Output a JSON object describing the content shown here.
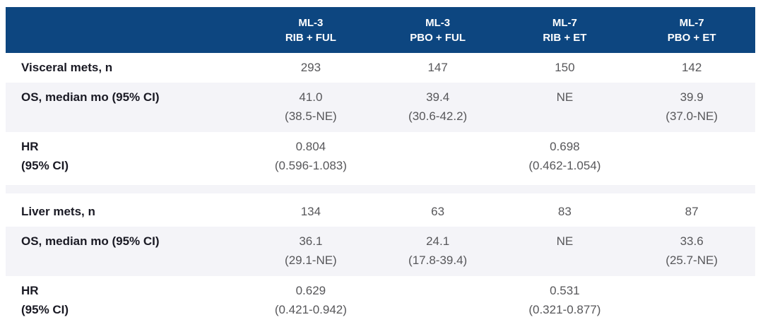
{
  "colors": {
    "header_bg": "#0d4680",
    "row_shade": "#f4f4f8",
    "label_text": "#1a1a24",
    "value_text": "#57575a",
    "header_text": "#ffffff"
  },
  "header": {
    "columns": [
      {
        "trial": "ML-3",
        "arm": "RIB + FUL"
      },
      {
        "trial": "ML-3",
        "arm": "PBO + FUL"
      },
      {
        "trial": "ML-7",
        "arm": "RIB + ET"
      },
      {
        "trial": "ML-7",
        "arm": "PBO + ET"
      }
    ]
  },
  "visceral": {
    "n_label": "Visceral mets, n",
    "n": [
      "293",
      "147",
      "150",
      "142"
    ],
    "os_label": "OS, median mo (95% CI)",
    "os": [
      {
        "v": "41.0",
        "ci": "(38.5-NE)"
      },
      {
        "v": "39.4",
        "ci": "(30.6-42.2)"
      },
      {
        "v": "NE",
        "ci": ""
      },
      {
        "v": "39.9",
        "ci": "(37.0-NE)"
      }
    ],
    "hr_label1": "HR",
    "hr_label2": "(95% CI)",
    "hr": {
      "rib_ful": {
        "v": "0.804",
        "ci": "(0.596-1.083)"
      },
      "rib_et": {
        "v": "0.698",
        "ci": "(0.462-1.054)"
      }
    }
  },
  "liver": {
    "n_label": "Liver mets, n",
    "n": [
      "134",
      "63",
      "83",
      "87"
    ],
    "os_label": "OS, median mo (95% CI)",
    "os": [
      {
        "v": "36.1",
        "ci": "(29.1-NE)"
      },
      {
        "v": "24.1",
        "ci": "(17.8-39.4)"
      },
      {
        "v": "NE",
        "ci": ""
      },
      {
        "v": "33.6",
        "ci": "(25.7-NE)"
      }
    ],
    "hr_label1": "HR",
    "hr_label2": "(95% CI)",
    "hr": {
      "rib_ful": {
        "v": "0.629",
        "ci": "(0.421-0.942)"
      },
      "rib_et": {
        "v": "0.531",
        "ci": "(0.321-0.877)"
      }
    }
  }
}
